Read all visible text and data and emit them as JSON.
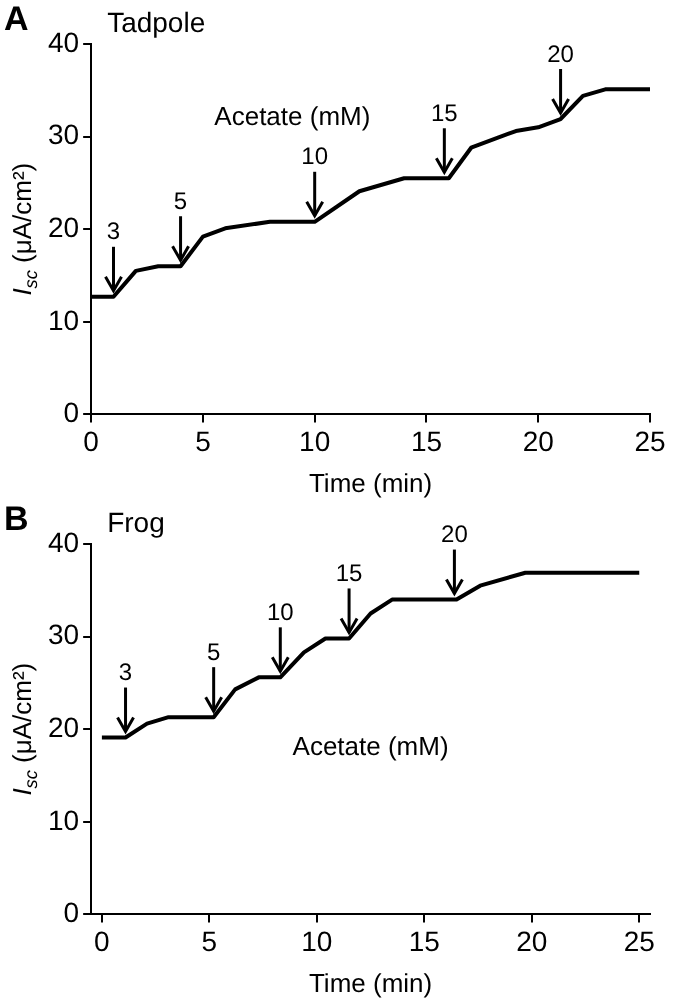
{
  "chart_data": [
    {
      "type": "line",
      "title": "Tadpole",
      "xlabel": "Time (min)",
      "ylabel": "I$_{sc}$ (μA/cm²)",
      "x": [
        0,
        1,
        2,
        3,
        4,
        5,
        6,
        8,
        10,
        12,
        14,
        16,
        17,
        19,
        20,
        21,
        22,
        23,
        25
      ],
      "series": [
        {
          "color": "#000000",
          "values": [
            12.7,
            12.7,
            15.5,
            16,
            16,
            19.2,
            20.1,
            20.8,
            20.8,
            24.1,
            25.5,
            25.5,
            28.8,
            30.6,
            31,
            31.9,
            34.4,
            35.1,
            35.1
          ]
        }
      ],
      "xlim": [
        0,
        25
      ],
      "xticks": [
        0,
        5,
        10,
        15,
        20,
        25
      ],
      "ylim": [
        0,
        40
      ],
      "yticks": [
        0,
        10,
        20,
        30,
        40
      ],
      "grid": false,
      "legend": false,
      "marker": "none",
      "line_style": "solid",
      "annotations": [
        "A",
        "Acetate (mM)",
        {
          "text": "3",
          "x": 1,
          "y": 12.7
        },
        {
          "text": "5",
          "x": 4,
          "y": 16
        },
        {
          "text": "10",
          "x": 10,
          "y": 20.8
        },
        {
          "text": "15",
          "x": 15.8,
          "y": 25.5
        },
        {
          "text": "20",
          "x": 21,
          "y": 31.9
        }
      ]
    },
    {
      "type": "line",
      "title": "Frog",
      "xlabel": "Time (min)",
      "ylabel": "I$_{sc}$ (μA/cm²)",
      "x": [
        0,
        1.1,
        2.1,
        3.1,
        5.2,
        6.2,
        7.3,
        8.3,
        9.4,
        10.4,
        11.5,
        12.5,
        13.5,
        16.5,
        17.6,
        19.7,
        25
      ],
      "series": [
        {
          "color": "#000000",
          "values": [
            19.1,
            19.1,
            20.6,
            21.3,
            21.3,
            24.3,
            25.6,
            25.6,
            28.3,
            29.8,
            29.8,
            32.5,
            34,
            34,
            35.5,
            36.9,
            36.9
          ]
        }
      ],
      "xlim": [
        -0.5,
        25.5
      ],
      "xticks": [
        0,
        5,
        10,
        15,
        20,
        25
      ],
      "ylim": [
        0,
        40
      ],
      "yticks": [
        0,
        10,
        20,
        30,
        40
      ],
      "grid": false,
      "legend": false,
      "marker": "none",
      "line_style": "solid",
      "annotations": [
        "B",
        "Acetate (mM)",
        {
          "text": "3",
          "x": 1.1,
          "y": 19.1
        },
        {
          "text": "5",
          "x": 5.2,
          "y": 21.3
        },
        {
          "text": "10",
          "x": 8.3,
          "y": 25.6
        },
        {
          "text": "15",
          "x": 11.5,
          "y": 29.8
        },
        {
          "text": "20",
          "x": 16.4,
          "y": 34
        }
      ]
    }
  ]
}
